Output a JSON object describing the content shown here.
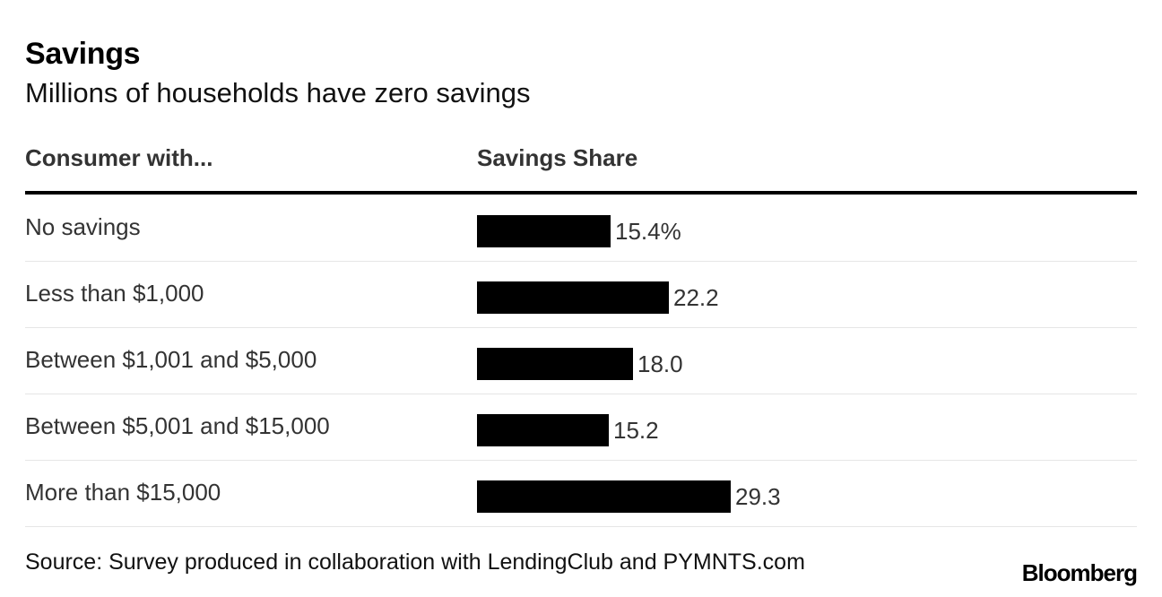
{
  "header": {
    "title": "Savings",
    "subtitle": "Millions of households have zero savings"
  },
  "table": {
    "col_left": "Consumer with...",
    "col_right": "Savings Share"
  },
  "chart_data": {
    "type": "bar",
    "orientation": "horizontal",
    "title": "Savings",
    "subtitle": "Millions of households have zero savings",
    "categories": [
      "No savings",
      "Less than $1,000",
      "Between $1,001 and $5,000",
      "Between $5,001 and $15,000",
      "More than $15,000"
    ],
    "values": [
      15.4,
      22.2,
      18.0,
      15.2,
      29.3
    ],
    "value_labels": [
      "15.4%",
      "22.2",
      "18.0",
      "15.2",
      "29.3"
    ],
    "xlim": [
      0,
      35
    ],
    "xlabel": "Savings Share",
    "ylabel": "Consumer with...",
    "bar_color": "#000000",
    "grid": false
  },
  "footer": {
    "source": "Source: Survey produced in collaboration with LendingClub and PYMNTS.com",
    "brand": "Bloomberg"
  }
}
